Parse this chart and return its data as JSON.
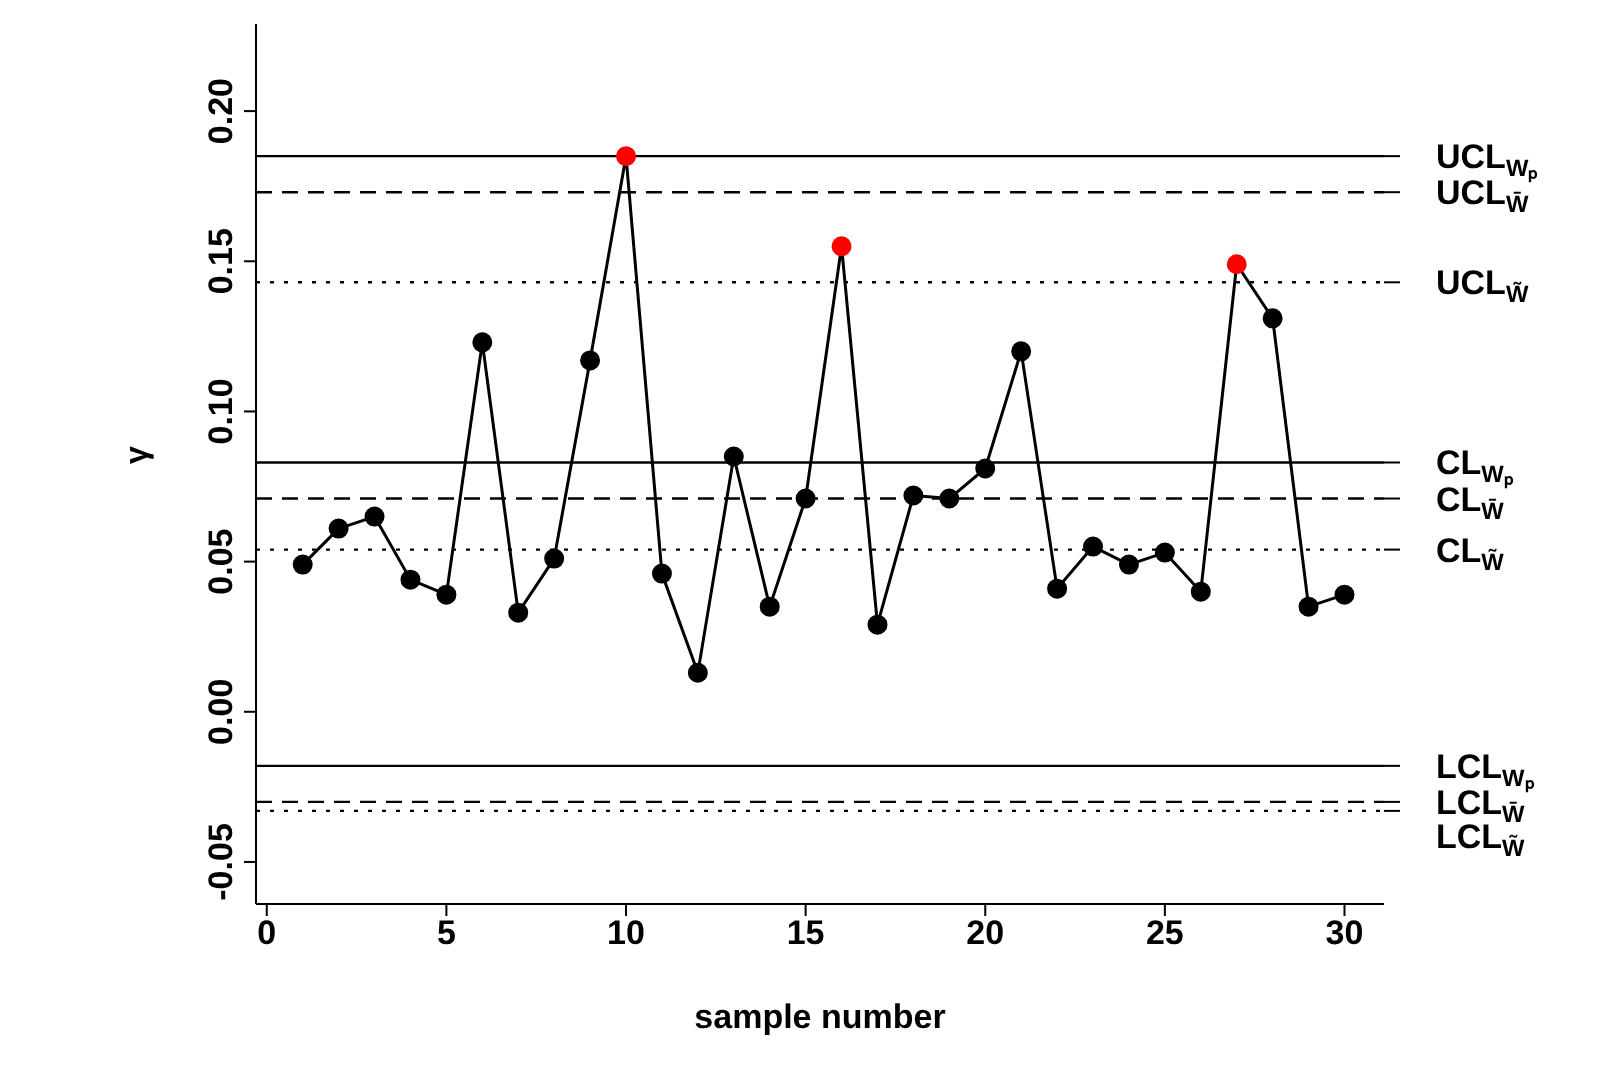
{
  "chart_data": {
    "type": "line",
    "xlabel": "sample number",
    "ylabel": "γ",
    "x": [
      1,
      2,
      3,
      4,
      5,
      6,
      7,
      8,
      9,
      10,
      11,
      12,
      13,
      14,
      15,
      16,
      17,
      18,
      19,
      20,
      21,
      22,
      23,
      24,
      25,
      26,
      27,
      28,
      29,
      30
    ],
    "series": [
      {
        "color": "#000000",
        "values": [
          0.049,
          0.061,
          0.065,
          0.044,
          0.039,
          0.123,
          0.033,
          0.051,
          0.117,
          0.185,
          0.046,
          0.013,
          0.085,
          0.035,
          0.071,
          0.155,
          0.029,
          0.072,
          0.071,
          0.081,
          0.12,
          0.041,
          0.055,
          0.049,
          0.053,
          0.04,
          0.149,
          0.131,
          0.035,
          0.039
        ],
        "colors": [
          "#000000",
          "#000000",
          "#000000",
          "#000000",
          "#000000",
          "#000000",
          "#000000",
          "#000000",
          "#000000",
          "#ff0000",
          "#000000",
          "#000000",
          "#000000",
          "#000000",
          "#000000",
          "#ff0000",
          "#000000",
          "#000000",
          "#000000",
          "#000000",
          "#000000",
          "#000000",
          "#000000",
          "#000000",
          "#000000",
          "#000000",
          "#ff0000",
          "#000000",
          "#000000",
          "#000000"
        ]
      }
    ],
    "marker": "circle",
    "line_style": "solid",
    "xlim": [
      -0.3,
      31.1
    ],
    "xticks": [
      0,
      5,
      10,
      15,
      20,
      25,
      30
    ],
    "ylim": [
      -0.064,
      0.229
    ],
    "yticks": [
      {
        "value": -0.05,
        "label": "-0.05"
      },
      {
        "value": 0,
        "label": "0.00"
      },
      {
        "value": 0.05,
        "label": "0.05"
      },
      {
        "value": 0.1,
        "label": "0.10"
      },
      {
        "value": 0.15,
        "label": "0.15"
      },
      {
        "value": 0.2,
        "label": "0.20"
      }
    ],
    "ref_lines": [
      {
        "axis": "y",
        "value": 0.185,
        "label": "UCL$_{Wₚ}$",
        "line_style": "solid",
        "color": "#000000"
      },
      {
        "axis": "y",
        "value": 0.173,
        "label": "UCL$_{W̄}$",
        "line_style": "dashed",
        "color": "#000000"
      },
      {
        "axis": "y",
        "value": 0.143,
        "label": "UCL$_{W̃}$",
        "line_style": "dotted",
        "color": "#000000"
      },
      {
        "axis": "y",
        "value": 0.083,
        "label": "CL$_{Wₚ}$",
        "line_style": "solid",
        "color": "#000000"
      },
      {
        "axis": "y",
        "value": 0.071,
        "label": "CL$_{W̄}$",
        "line_style": "dashed",
        "color": "#000000"
      },
      {
        "axis": "y",
        "value": 0.054,
        "label": "CL$_{W̃}$",
        "line_style": "dotted",
        "color": "#000000"
      },
      {
        "axis": "y",
        "value": -0.018,
        "label": "LCL$_{Wₚ}$",
        "line_style": "solid",
        "color": "#000000"
      },
      {
        "axis": "y",
        "value": -0.03,
        "label": "LCL$_{W̄}$",
        "line_style": "dashed",
        "color": "#000000"
      },
      {
        "axis": "y",
        "value": -0.033,
        "label": "LCL$_{W̃}$",
        "line_style": "dotted",
        "color": "#000000"
      }
    ]
  }
}
